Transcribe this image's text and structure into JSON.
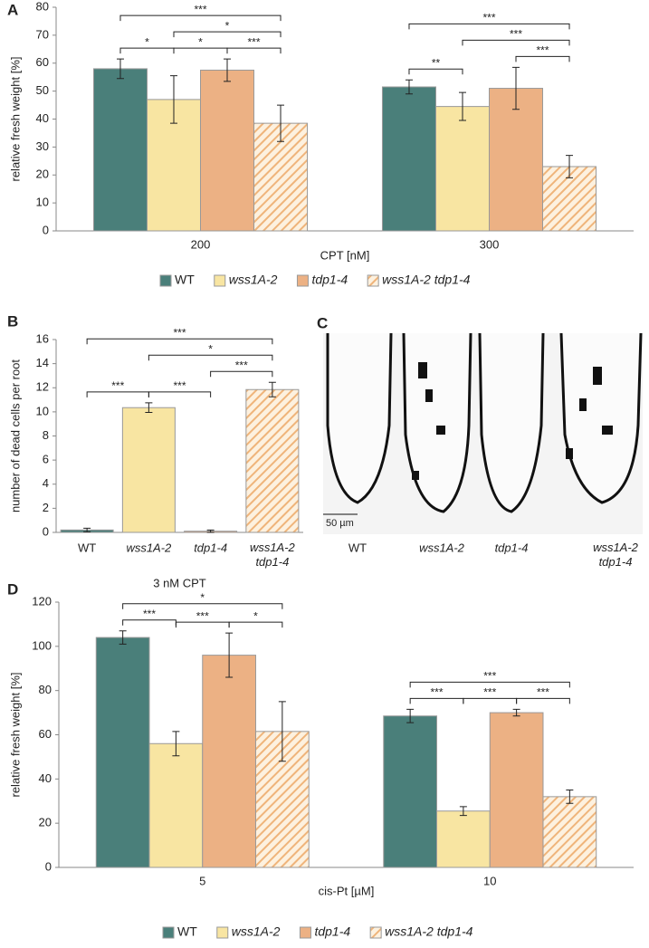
{
  "chart_data": [
    {
      "type": "bar",
      "panel": "A",
      "ylabel": "relative fresh weight [%]",
      "xlabel": "CPT [nM]",
      "categories": [
        "200",
        "300"
      ],
      "series": [
        {
          "name": "WT",
          "color": "#4a7f7a",
          "hatch": false,
          "values": [
            58,
            51.5
          ],
          "errors": [
            3.5,
            2.5
          ]
        },
        {
          "name": "wss1A-2",
          "color": "#f8e5a2",
          "hatch": false,
          "values": [
            47,
            44.5
          ],
          "errors": [
            8.5,
            5
          ]
        },
        {
          "name": "tdp1-4",
          "color": "#ecb184",
          "hatch": false,
          "values": [
            57.5,
            51
          ],
          "errors": [
            4,
            7.5
          ]
        },
        {
          "name": "wss1A-2 tdp1-4",
          "color": "#efb47a",
          "hatch": true,
          "values": [
            38.5,
            23
          ],
          "errors": [
            6.5,
            4
          ]
        }
      ],
      "significance": [
        {
          "category": 0,
          "pair": [
            0,
            1
          ],
          "label": "*"
        },
        {
          "category": 0,
          "pair": [
            1,
            2
          ],
          "label": "*"
        },
        {
          "category": 0,
          "pair": [
            2,
            3
          ],
          "label": "***"
        },
        {
          "category": 0,
          "pair": [
            1,
            3
          ],
          "label": "*"
        },
        {
          "category": 0,
          "pair": [
            0,
            3
          ],
          "label": "***"
        },
        {
          "category": 1,
          "pair": [
            0,
            1
          ],
          "label": "**"
        },
        {
          "category": 1,
          "pair": [
            2,
            3
          ],
          "label": "***"
        },
        {
          "category": 1,
          "pair": [
            1,
            3
          ],
          "label": "***"
        },
        {
          "category": 1,
          "pair": [
            0,
            3
          ],
          "label": "***"
        }
      ],
      "ylim": [
        0,
        80
      ],
      "yticks": [
        0,
        10,
        20,
        30,
        40,
        50,
        60,
        70,
        80
      ],
      "legend": "bottom"
    },
    {
      "type": "bar",
      "panel": "B",
      "ylabel": "number of dead cells per root",
      "xlabel": "3 nM CPT",
      "categories": [
        "WT",
        "wss1A-2",
        "tdp1-4",
        "wss1A-2 tdp1-4"
      ],
      "values": [
        0.2,
        10.35,
        0.1,
        11.85
      ],
      "errors": [
        0.15,
        0.4,
        0.1,
        0.6
      ],
      "colors": [
        "#4a7f7a",
        "#f8e5a2",
        "#ecb184",
        "#efb47a"
      ],
      "hatch": [
        false,
        false,
        false,
        true
      ],
      "significance": [
        {
          "pair": [
            0,
            1
          ],
          "label": "***"
        },
        {
          "pair": [
            1,
            2
          ],
          "label": "***"
        },
        {
          "pair": [
            2,
            3
          ],
          "label": "***"
        },
        {
          "pair": [
            1,
            3
          ],
          "label": "*"
        },
        {
          "pair": [
            0,
            3
          ],
          "label": "***"
        }
      ],
      "ylim": [
        0,
        16
      ],
      "yticks": [
        0,
        2,
        4,
        6,
        8,
        10,
        12,
        14,
        16
      ]
    },
    {
      "type": "bar",
      "panel": "D",
      "ylabel": "relative fresh weight [%]",
      "xlabel": "cis-Pt [µM]",
      "categories": [
        "5",
        "10"
      ],
      "series": [
        {
          "name": "WT",
          "color": "#4a7f7a",
          "hatch": false,
          "values": [
            104,
            68.5
          ],
          "errors": [
            3,
            3
          ]
        },
        {
          "name": "wss1A-2",
          "color": "#f8e5a2",
          "hatch": false,
          "values": [
            56,
            25.5
          ],
          "errors": [
            5.5,
            2
          ]
        },
        {
          "name": "tdp1-4",
          "color": "#ecb184",
          "hatch": false,
          "values": [
            96,
            70
          ],
          "errors": [
            10,
            1.5
          ]
        },
        {
          "name": "wss1A-2 tdp1-4",
          "color": "#efb47a",
          "hatch": true,
          "values": [
            61.5,
            32
          ],
          "errors": [
            13.5,
            3
          ]
        }
      ],
      "significance": [
        {
          "category": 0,
          "pair": [
            0,
            1
          ],
          "label": "***"
        },
        {
          "category": 0,
          "pair": [
            1,
            2
          ],
          "label": "***"
        },
        {
          "category": 0,
          "pair": [
            2,
            3
          ],
          "label": "*"
        },
        {
          "category": 0,
          "pair": [
            0,
            3
          ],
          "label": "*"
        },
        {
          "category": 1,
          "pair": [
            0,
            1
          ],
          "label": "***"
        },
        {
          "category": 1,
          "pair": [
            1,
            2
          ],
          "label": "***"
        },
        {
          "category": 1,
          "pair": [
            2,
            3
          ],
          "label": "***"
        },
        {
          "category": 1,
          "pair": [
            0,
            3
          ],
          "label": "***"
        }
      ],
      "ylim": [
        0,
        120
      ],
      "yticks": [
        0,
        20,
        40,
        60,
        80,
        100,
        120
      ],
      "legend": "bottom"
    }
  ],
  "panel_c": {
    "panel": "C",
    "labels": [
      "WT",
      "wss1A-2",
      "tdp1-4",
      "wss1A-2 tdp1-4"
    ],
    "scale_bar": "50 µm"
  }
}
